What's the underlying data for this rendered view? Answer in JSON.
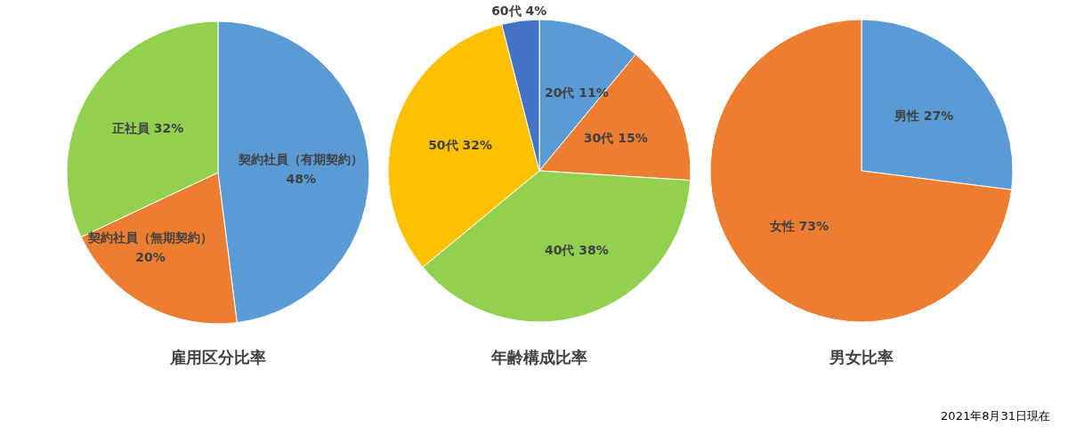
{
  "chart_data": [
    {
      "type": "pie",
      "title": "雇用区分比率",
      "categories": [
        "契約社員（有期契約）",
        "契約社員（無期契約）",
        "正社員"
      ],
      "values": [
        48,
        20,
        32
      ],
      "colors": [
        "#5b9bd5",
        "#ed7d31",
        "#92d050"
      ],
      "value_labels": [
        "48%",
        "20%",
        "32%"
      ]
    },
    {
      "type": "pie",
      "title": "年齢構成比率",
      "categories": [
        "20代",
        "30代",
        "40代",
        "50代",
        "60代"
      ],
      "values": [
        11,
        15,
        38,
        32,
        4
      ],
      "colors": [
        "#5b9bd5",
        "#ed7d31",
        "#92d050",
        "#ffc000",
        "#4472c4"
      ],
      "value_labels": [
        "11%",
        "15%",
        "38%",
        "32%",
        "4%"
      ]
    },
    {
      "type": "pie",
      "title": "男女比率",
      "categories": [
        "男性",
        "女性"
      ],
      "values": [
        27,
        73
      ],
      "colors": [
        "#5b9bd5",
        "#ed7d31"
      ],
      "value_labels": [
        "27%",
        "73%"
      ],
      "annotations": [
        "2021年8月31日現在"
      ]
    }
  ]
}
